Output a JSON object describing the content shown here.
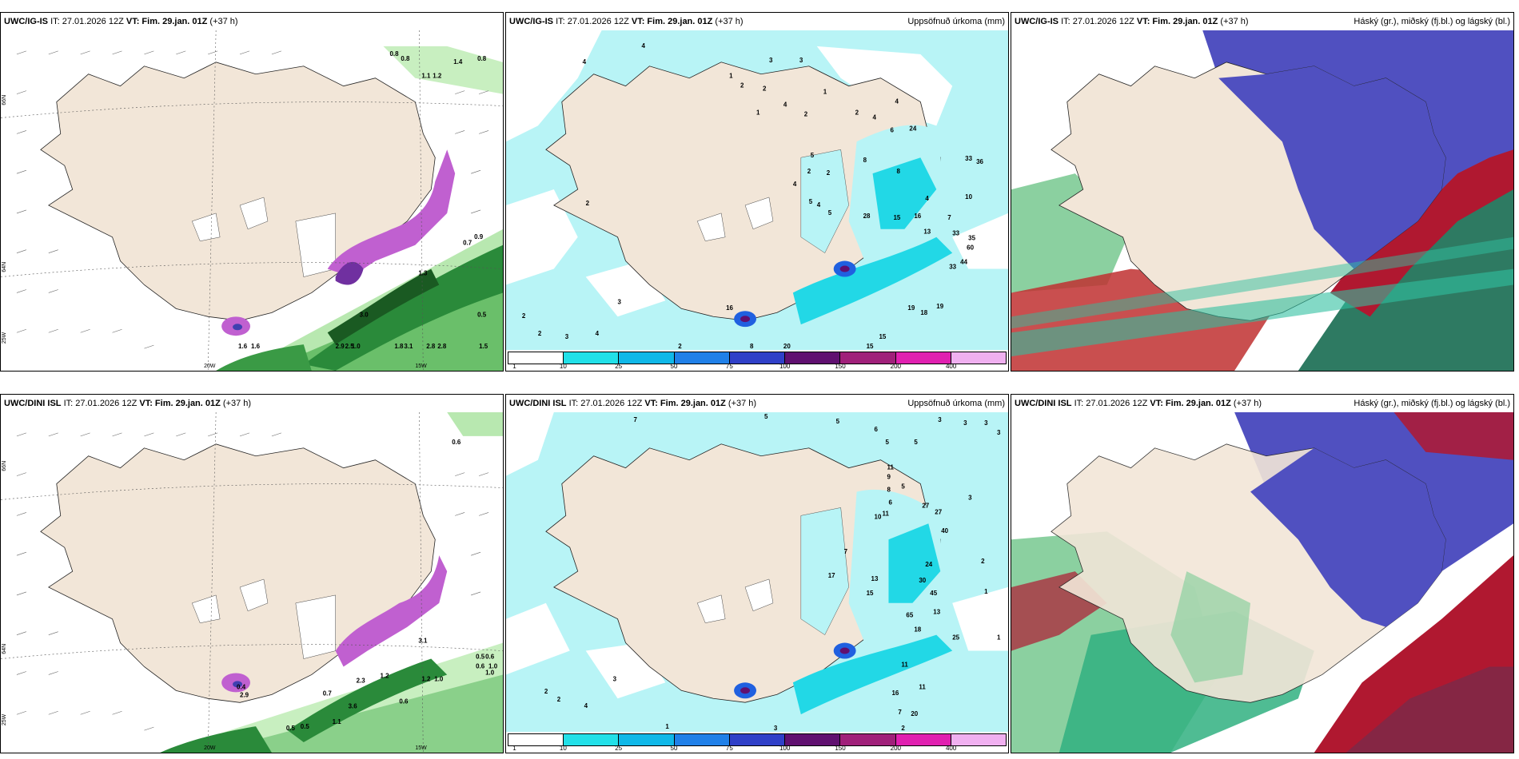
{
  "rows": [
    {
      "model": "UWC/IG-IS",
      "it_label": "IT: 27.01.2026 12Z",
      "vt_label": "VT:",
      "vt_time": "Fim. 29.jan. 01Z",
      "lead": "(+37 h)",
      "precip_title": "Uppsöfnuð úrkoma (mm)",
      "cloud_title": "Háský (gr.), miðský (fj.bl.) og lágský (bl.)",
      "wind_labels": [
        "0.8",
        "0.8",
        "1.4",
        "0.8",
        "1.1",
        "1.2",
        "0.7",
        "0.9",
        "1.3",
        "3.0",
        "0.5",
        "1.0",
        "3.1",
        "2.8",
        "2.8",
        "1.8",
        "2.5",
        "1.5",
        "2.9",
        "1.6",
        "1.6"
      ],
      "precip_labels": [
        "4",
        "4",
        "1",
        "2",
        "2",
        "3",
        "3",
        "4",
        "1",
        "2",
        "1",
        "2",
        "4",
        "4",
        "6",
        "5",
        "2",
        "2",
        "4",
        "24",
        "4",
        "5",
        "5",
        "8",
        "33",
        "36",
        "8",
        "4",
        "10",
        "28",
        "15",
        "16",
        "7",
        "13",
        "33",
        "35",
        "60",
        "44",
        "33",
        "18",
        "19",
        "19",
        "15",
        "15",
        "20",
        "16",
        "8",
        "2",
        "2",
        "2",
        "2",
        "3",
        "4",
        "3",
        "2"
      ],
      "axis_labels": {
        "lat1": "66N",
        "lat2": "64N",
        "lon1": "20W",
        "lon2": "15W",
        "lon3": "25W"
      }
    },
    {
      "model": "UWC/DINI ISL",
      "it_label": "IT: 27.01.2026 12Z",
      "vt_label": "VT:",
      "vt_time": "Fim. 29.jan. 01Z",
      "lead": "(+37 h)",
      "precip_title": "Uppsöfnuð úrkoma (mm)",
      "cloud_title": "Háský (gr.), miðský (fj.bl.) og lágský (bl.)",
      "wind_labels": [
        "0.6",
        "3.1",
        "0.5",
        "0.6",
        "1.0",
        "1.0",
        "0.6",
        "1.2",
        "1.0",
        "2.3",
        "0.7",
        "3.6",
        "0.6",
        "1.1",
        "0.5",
        "0.5",
        "1.2",
        "0.4",
        "2.9"
      ],
      "precip_labels": [
        "7",
        "5",
        "5",
        "6",
        "5",
        "5",
        "3",
        "3",
        "3",
        "3",
        "11",
        "9",
        "8",
        "6",
        "5",
        "11",
        "10",
        "27",
        "27",
        "40",
        "24",
        "7",
        "17",
        "13",
        "15",
        "30",
        "45",
        "65",
        "13",
        "18",
        "25",
        "11",
        "11",
        "16",
        "20",
        "7",
        "3",
        "2",
        "3",
        "2",
        "1",
        "1",
        "2",
        "2",
        "4",
        "3",
        "1"
      ],
      "axis_labels": {
        "lat1": "66N",
        "lat2": "64N",
        "lon1": "20W",
        "lon2": "15W",
        "lon3": "25W"
      }
    }
  ],
  "colorbar": {
    "ticks": [
      "1",
      "10",
      "25",
      "50",
      "75",
      "100",
      "150",
      "200",
      "400"
    ],
    "colors": [
      "#ffffff",
      "#22e0e8",
      "#10b8e8",
      "#2080e8",
      "#3040c8",
      "#601070",
      "#a0207a",
      "#e020b0",
      "#f0b0f0"
    ]
  },
  "colors": {
    "land": "#f2e6d8",
    "sea_white": "#ffffff",
    "precip_light": "#b8f4f6",
    "precip_mid": "#22d8e6",
    "green_light": "#b8e8b0",
    "green_dark": "#1a6a2a",
    "magenta": "#c060d0",
    "cloud_purple": "#5050c0",
    "cloud_red": "#b01830",
    "cloud_green": "#30b080"
  }
}
